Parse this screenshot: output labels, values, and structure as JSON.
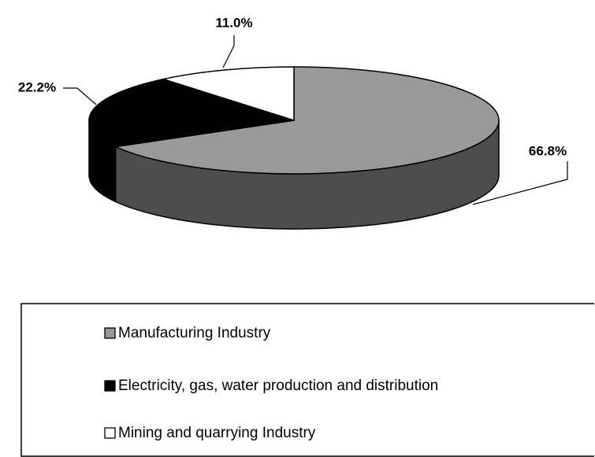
{
  "chart_data": {
    "type": "pie",
    "categories": [
      "Manufacturing Industry",
      "Electricity, gas, water production and distribution",
      "Mining and quarrying Industry"
    ],
    "values": [
      66.8,
      22.2,
      11.0
    ],
    "value_labels": [
      "66.8%",
      "22.2%",
      "11.0%"
    ],
    "colors": [
      "#999999",
      "#000000",
      "#ffffff"
    ],
    "legend": "bottom"
  }
}
